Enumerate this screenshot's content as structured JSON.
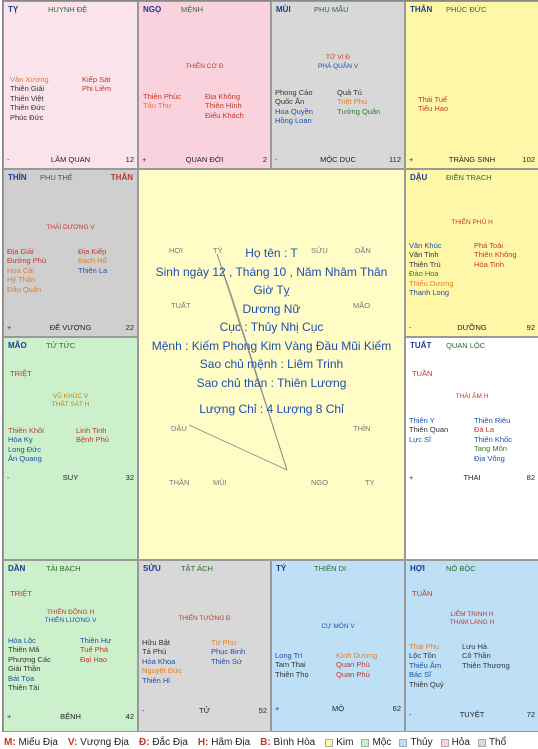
{
  "colors": {
    "kim": "#fff7a8",
    "moc": "#ccefcc",
    "thuy": "#bde0f7",
    "hoa": "#f9d2de",
    "tho": "#d8d8d8"
  },
  "palaces": {
    "ty": {
      "branch": "TỴ",
      "palace": "HUYNH ĐỆ",
      "left": [
        "Văn Xương",
        "Thiên Giải",
        "Thiên Việt",
        "Thiên Đức",
        "Phúc Đức"
      ],
      "right": [
        "Kiếp Sát",
        "Phi Liêm"
      ],
      "stage": "LÂM QUAN",
      "sign": "-",
      "age": "12"
    },
    "ngo": {
      "branch": "NGỌ",
      "palace": "MỆNH",
      "main_star": "THIÊN CƠ Đ",
      "left": [
        "Thiên Phúc",
        "Tấu Thư"
      ],
      "right": [
        "Địa Không",
        "Thiên Hình",
        "Điếu Khách"
      ],
      "stage": "QUAN ĐỚI",
      "sign": "+",
      "age": "2"
    },
    "mui": {
      "branch": "MÙI",
      "palace": "PHỤ MẪU",
      "main_star": "TỬ VI Đ",
      "main_star_2": "PHÁ QUÂN V",
      "left": [
        "Phong Cáo",
        "Quốc Ấn",
        "Hoa Quyền",
        "Hồng Loan"
      ],
      "right": [
        "Quả Tú",
        "Triệt Phú",
        "Tướng Quân"
      ],
      "stage": "MỘC DỤC",
      "sign": "-",
      "age": "112"
    },
    "than": {
      "branch": "THÂN",
      "palace": "PHÚC ĐỨC",
      "left": [
        "Thái Tuế",
        "Tiểu Hao"
      ],
      "right": [],
      "stage": "TRÀNG SINH",
      "sign": "+",
      "age": "102"
    },
    "thin": {
      "branch": "THÌN",
      "palace": "PHU THÊ",
      "than_tag": "THÂN",
      "main_star": "THÁI DƯƠNG V",
      "left": [
        "Địa Giải",
        "Đường Phù",
        "Hoa Cái",
        "Hỷ Thần",
        "Đẩu Quân"
      ],
      "right": [
        "Địa Kiếp",
        "Bạch Hổ",
        "Thiên La"
      ],
      "stage": "ĐẾ VƯỢNG",
      "sign": "+",
      "age": "22"
    },
    "dau": {
      "branch": "DẬU",
      "palace": "ĐIỀN TRẠCH",
      "main_star": "THIÊN PHỦ H",
      "left": [
        "Văn Khúc",
        "Văn Tinh",
        "Thiên Trù",
        "Đào Hoa",
        "Thiếu Dương",
        "Thanh Long"
      ],
      "right": [
        "Phá Toái",
        "Thiên Không",
        "Hóa Tinh"
      ],
      "stage": "DƯỠNG",
      "sign": "-",
      "age": "92"
    },
    "mao": {
      "branch": "MÃO",
      "palace": "TỬ TỨC",
      "marker": "TRIỆT",
      "main_star": "VŨ KHÚC V",
      "main_star_2": "THẤT SÁT H",
      "left": [
        "Thiên Khôi",
        "Hóa Kỵ",
        "Long Đức",
        "Ân Quang"
      ],
      "right": [
        "Linh Tinh",
        "Bệnh Phù"
      ],
      "stage": "SUY",
      "sign": "-",
      "age": "32"
    },
    "tuat": {
      "branch": "TUẤT",
      "palace": "QUAN LỘC",
      "marker": "TUẦN",
      "main_star": "THÁI ÂM H",
      "left": [
        "Thiên Y",
        "Thiên Quan",
        "Lực Sĩ"
      ],
      "right": [
        "Thiên Riêu",
        "Đà La",
        "Thiên Khốc",
        "Tang Môn",
        "Địa Võng"
      ],
      "stage": "THAI",
      "sign": "+",
      "age": "82"
    },
    "dan": {
      "branch": "DẦN",
      "palace": "TÀI BẠCH",
      "marker": "TRIỆT",
      "main_star": "THIÊN ĐỒNG H",
      "main_star_2": "THIÊN LƯƠNG V",
      "left": [
        "Hóa Lộc",
        "Thiên Mã",
        "Phượng Các",
        "Giải Thần",
        "Bát Tọa",
        "Thiên Tài"
      ],
      "right": [
        "Thiên Hư",
        "Tuế Phá",
        "Đại Hao"
      ],
      "stage": "BỆNH",
      "sign": "+",
      "age": "42"
    },
    "suu": {
      "branch": "SỬU",
      "palace": "TẬT ÁCH",
      "main_star": "THIÊN TƯỚNG Đ",
      "left": [
        "Hữu Bật",
        "Tả Phù",
        "Hóa Khoa",
        "Nguyệt Đức",
        "Thiên Hỉ"
      ],
      "right": [
        "Tử Phù",
        "Phục Binh",
        "Thiên Sứ"
      ],
      "stage": "TỬ",
      "sign": "-",
      "age": "52"
    },
    "ty2": {
      "branch": "TÝ",
      "palace": "THIÊN DI",
      "main_star": "CỰ MÔN V",
      "left": [
        "Long Trì",
        "Tam Thai",
        "Thiên Thọ"
      ],
      "right": [
        "Kình Dương",
        "Quan Phù",
        "Quan Phủ"
      ],
      "stage": "MỘ",
      "sign": "+",
      "age": "62"
    },
    "hoi": {
      "branch": "HỢI",
      "palace": "NÔ BỘC",
      "marker": "TUẦN",
      "main_star": "LIÊM TRINH H",
      "main_star_2": "THAM LANG H",
      "left": [
        "Thái Phụ",
        "Lộc Tồn",
        "Thiếu Âm",
        "Bác Sĩ",
        "Thiên Quý"
      ],
      "right": [
        "Lưu Hà",
        "Cô Thần",
        "Thiên Thương"
      ],
      "stage": "TUYỆT",
      "sign": "-",
      "age": "72"
    }
  },
  "center": {
    "branch_labels": {
      "hoi": "HỢI",
      "ty": "TÝ",
      "suu": "SỬU",
      "dan": "DẦN",
      "tuat": "TUẤT",
      "mao": "MÃO",
      "dau": "DẬU",
      "thin": "THÌN",
      "than": "THÂN",
      "mui": "MÙI",
      "ngo": "NGỌ",
      "ty2": "TỴ"
    },
    "lines": [
      "Họ tên : T",
      "Sinh ngày 12 , Tháng 10 , Năm Nhâm Thân",
      "Giờ Tỵ",
      "Dương Nữ",
      "Cục : Thủy Nhị Cục",
      "Mệnh : Kiếm Phong Kim Vàng Đầu Mũi Kiếm",
      "Sao chủ mệnh : Liêm Trinh",
      "Sao chủ thân : Thiên Lương"
    ],
    "luong_chi": "Lượng Chỉ : 4 Lượng 8 Chỉ"
  },
  "legend": {
    "items": [
      {
        "key": "M:",
        "label": "Miếu Địa"
      },
      {
        "key": "V:",
        "label": "Vượng Địa"
      },
      {
        "key": "Đ:",
        "label": "Đắc Địa"
      },
      {
        "key": "H:",
        "label": "Hãm Địa"
      },
      {
        "key": "B:",
        "label": "Bình Hòa"
      }
    ],
    "elements": [
      {
        "label": "Kim",
        "color": "#fff7a8"
      },
      {
        "label": "Mộc",
        "color": "#ccefcc"
      },
      {
        "label": "Thủy",
        "color": "#bde0f7"
      },
      {
        "label": "Hỏa",
        "color": "#f9d2de"
      },
      {
        "label": "Thổ",
        "color": "#d8d8d8"
      }
    ]
  }
}
